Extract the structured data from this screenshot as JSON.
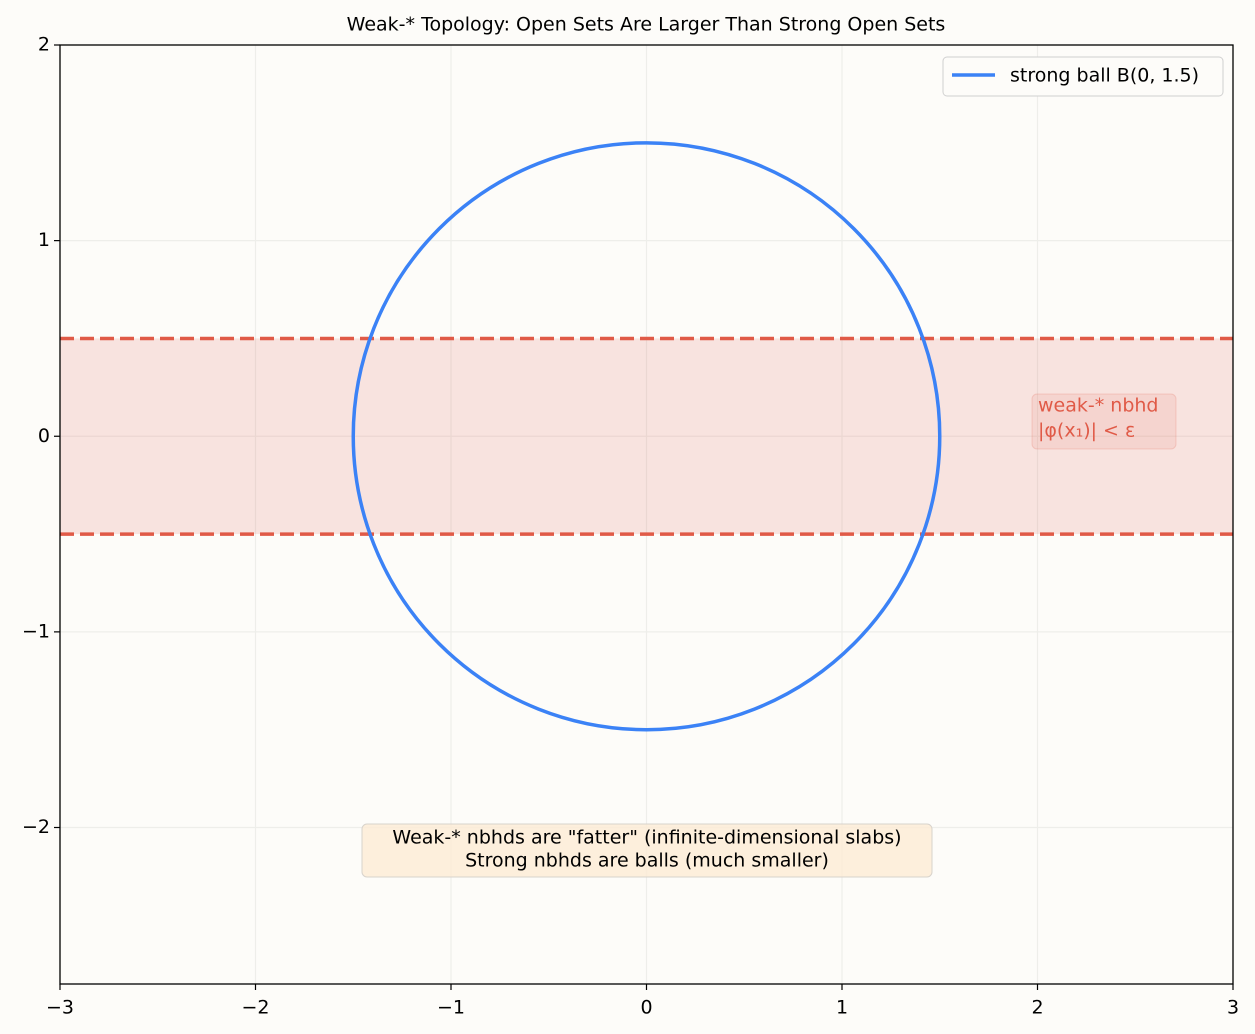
{
  "chart_data": {
    "type": "circle",
    "title": "Weak-* Topology: Open Sets Are Larger Than Strong Open Sets",
    "series": [
      {
        "name": "strong ball B(0, 1.5)",
        "color": "#3b82f6",
        "center": [
          0,
          0
        ],
        "radius": 1.5
      }
    ],
    "band": {
      "ylim": [
        -0.5,
        0.5
      ],
      "color": "#e05a47"
    },
    "annotations": [
      {
        "lines": [
          "weak-* nbhd",
          "|φ(x₁)| < ε"
        ],
        "color": "#e05a47"
      },
      {
        "lines": [
          "Weak-* nbhds are \"fatter\" (infinite-dimensional slabs)",
          "Strong nbhds are balls (much smaller)"
        ],
        "color": "#000000"
      }
    ],
    "xlim": [
      -3,
      3
    ],
    "ylim": [
      -2.8,
      2
    ],
    "xticks": [
      {
        "value": -3,
        "label": "−3"
      },
      {
        "value": -2,
        "label": "−2"
      },
      {
        "value": -1,
        "label": "−1"
      },
      0,
      1,
      2,
      3
    ],
    "yticks": [
      {
        "value": -2,
        "label": "−2"
      },
      {
        "value": -1,
        "label": "−1"
      },
      0,
      1,
      2
    ],
    "grid": true,
    "legend": "upper right"
  }
}
